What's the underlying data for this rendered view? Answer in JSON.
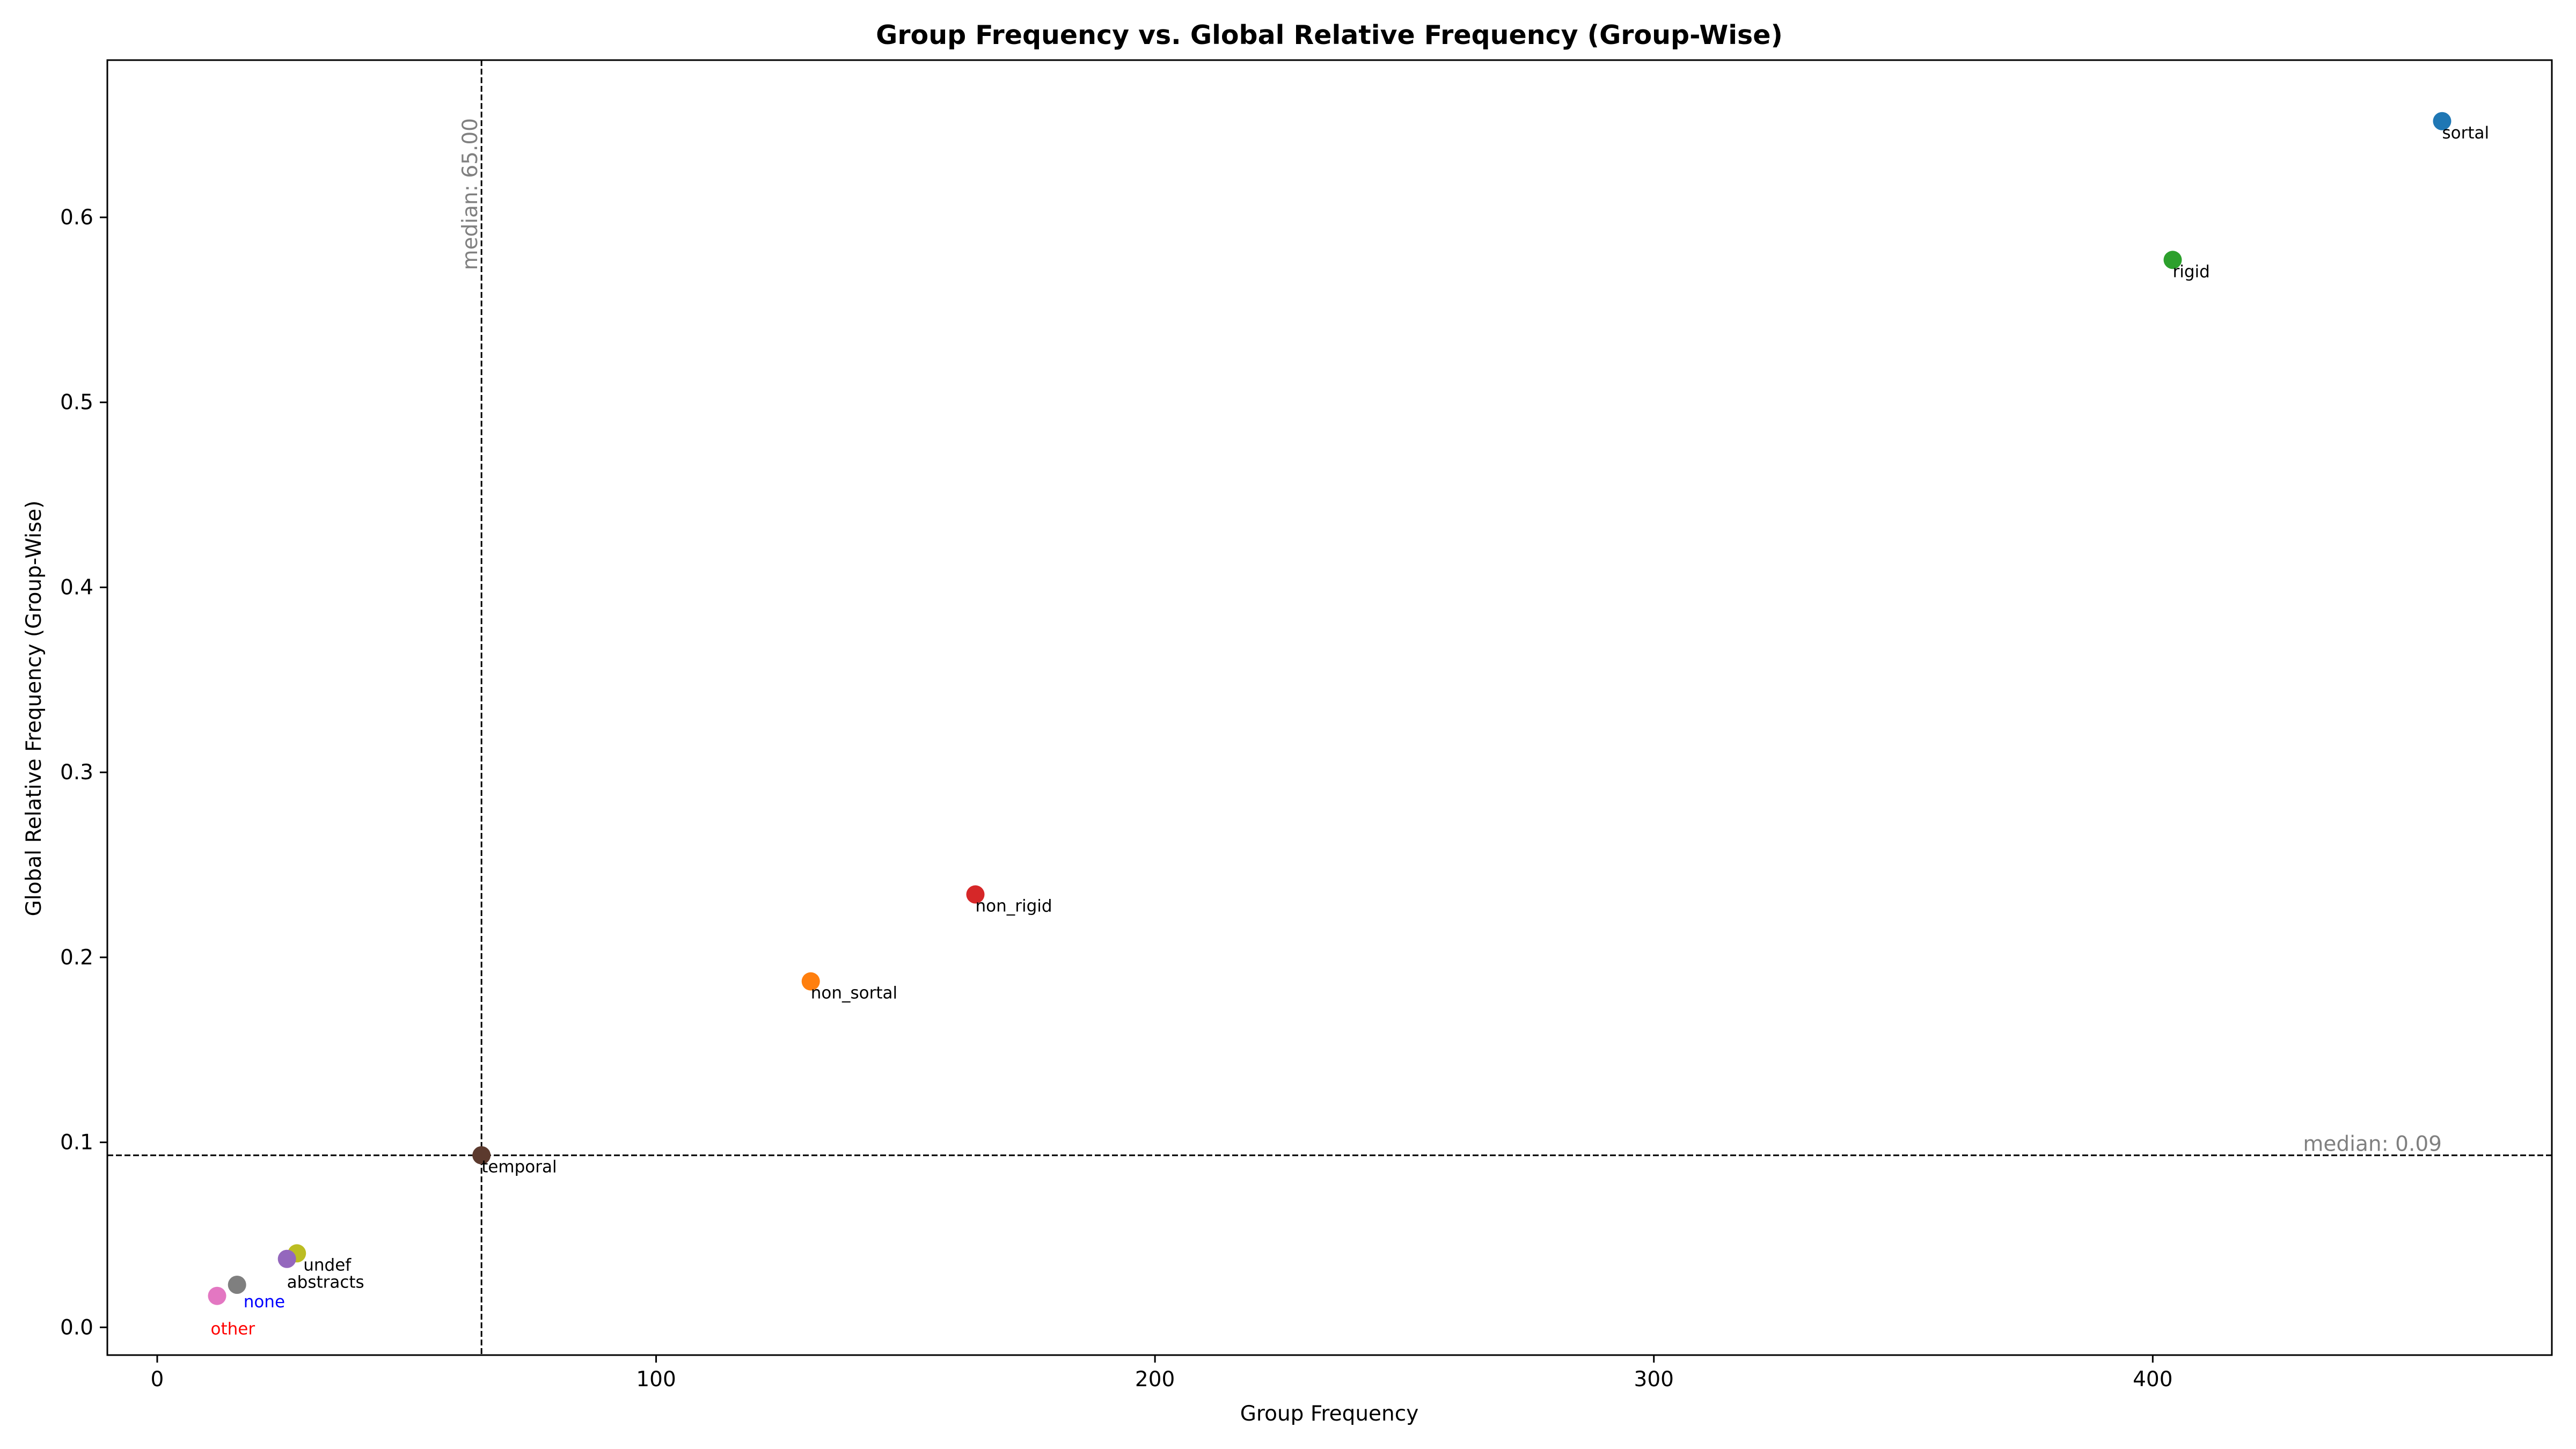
{
  "chart_data": {
    "type": "scatter",
    "title": "Group Frequency vs. Global Relative Frequency (Group-Wise)",
    "xlabel": "Group Frequency",
    "ylabel": "Global Relative Frequency (Group-Wise)",
    "xlim": [
      -10,
      480
    ],
    "ylim": [
      -0.015,
      0.685
    ],
    "xticks": [
      0,
      100,
      200,
      300,
      400
    ],
    "xtick_labels": [
      "0",
      "100",
      "200",
      "300",
      "400"
    ],
    "yticks": [
      0.0,
      0.1,
      0.2,
      0.3,
      0.4,
      0.5,
      0.6
    ],
    "ytick_labels": [
      "0.0",
      "0.1",
      "0.2",
      "0.3",
      "0.4",
      "0.5",
      "0.6"
    ],
    "grid": false,
    "points": [
      {
        "label": "sortal",
        "x": 458,
        "y": 0.652,
        "color": "#1f77b4",
        "label_color": "#000000"
      },
      {
        "label": "rigid",
        "x": 404,
        "y": 0.577,
        "color": "#2ca02c",
        "label_color": "#000000"
      },
      {
        "label": "non_rigid",
        "x": 164,
        "y": 0.234,
        "color": "#d62728",
        "label_color": "#000000"
      },
      {
        "label": "non_sortal",
        "x": 131,
        "y": 0.187,
        "color": "#ff7f0e",
        "label_color": "#000000"
      },
      {
        "label": "temporal",
        "x": 65,
        "y": 0.093,
        "color": "#5c3a2e",
        "label_color": "#000000"
      },
      {
        "label": "undef",
        "x": 28,
        "y": 0.04,
        "color": "#bcbd22",
        "label_color": "#000000"
      },
      {
        "label": "abstracts",
        "x": 26,
        "y": 0.037,
        "color": "#9467bd",
        "label_color": "#000000"
      },
      {
        "label": "none",
        "x": 16,
        "y": 0.023,
        "color": "#7f7f7f",
        "label_color": "#0000ff"
      },
      {
        "label": "other",
        "x": 12,
        "y": 0.017,
        "color": "#e377c2",
        "label_color": "#ff0000"
      }
    ],
    "median_x": {
      "value": 65,
      "label": "median: 65.00"
    },
    "median_y": {
      "value": 0.093,
      "label": "median: 0.09"
    }
  }
}
